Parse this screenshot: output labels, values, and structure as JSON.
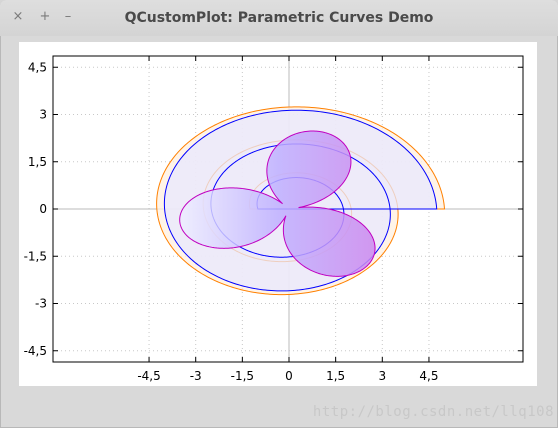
{
  "window": {
    "title": "QCustomPlot: Parametric Curves Demo",
    "buttons": {
      "close": "×",
      "maximize": "+",
      "minimize": "–"
    }
  },
  "watermark": "http://blog.csdn.net/llq108",
  "chart_data": {
    "type": "line",
    "title": "",
    "xlabel": "",
    "ylabel": "",
    "xlim": [
      -5,
      5
    ],
    "ylim": [
      -5,
      5
    ],
    "x_ticks": [
      -4.5,
      -3,
      -1.5,
      0,
      1.5,
      3,
      4.5
    ],
    "y_ticks": [
      4.5,
      3,
      1.5,
      0,
      -1.5,
      -3,
      -4.5
    ],
    "x_tick_labels": [
      "-4,5",
      "-3",
      "-1,5",
      "0",
      "1,5",
      "3",
      "4,5"
    ],
    "y_tick_labels": [
      "4,5",
      "3",
      "1,5",
      "0",
      "-1,5",
      "-3",
      "-4,5"
    ],
    "grid": true,
    "series": [
      {
        "curve": "spiral",
        "color": "#ff8000",
        "fill": "#fff0e0",
        "a": 5.0,
        "b": 3.5,
        "turns": 2.5,
        "shrink_per_turn": 1.5
      },
      {
        "curve": "spiral",
        "color": "#0000ff",
        "fill": "#e8e8ff",
        "a": 4.75,
        "b": 3.4,
        "turns": 2.5,
        "shrink_per_turn": 1.5
      },
      {
        "curve": "trefoil",
        "color": "#c000c0",
        "fill": "#cc99ff",
        "radius": 2.6
      }
    ]
  }
}
